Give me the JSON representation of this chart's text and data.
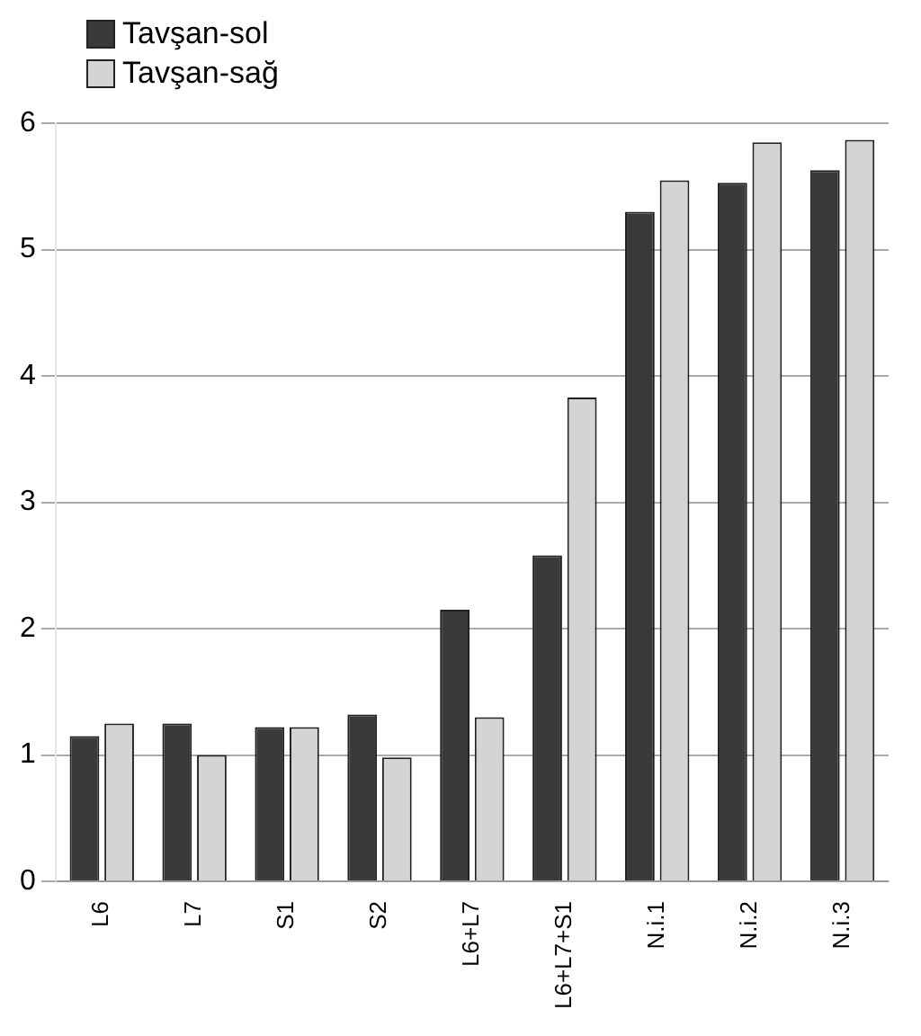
{
  "chart_data": {
    "type": "bar",
    "categories": [
      "L6",
      "L7",
      "S1",
      "S2",
      "L6+L7",
      "L6+L7+S1",
      "N.i.1",
      "N.i.2",
      "N.i.3"
    ],
    "series": [
      {
        "name": "Tavşan-sol",
        "color": "#3a3a3a",
        "values": [
          1.15,
          1.25,
          1.22,
          1.32,
          2.15,
          2.58,
          5.3,
          5.53,
          5.63
        ]
      },
      {
        "name": "Tavşan-sağ",
        "color": "#d4d4d4",
        "values": [
          1.25,
          1.0,
          1.22,
          0.98,
          1.3,
          3.83,
          5.55,
          5.85,
          5.87
        ]
      }
    ],
    "ylim": [
      0,
      6
    ],
    "yticks": [
      0,
      1,
      2,
      3,
      4,
      5,
      6
    ],
    "grid": "y",
    "legend": "top left"
  }
}
